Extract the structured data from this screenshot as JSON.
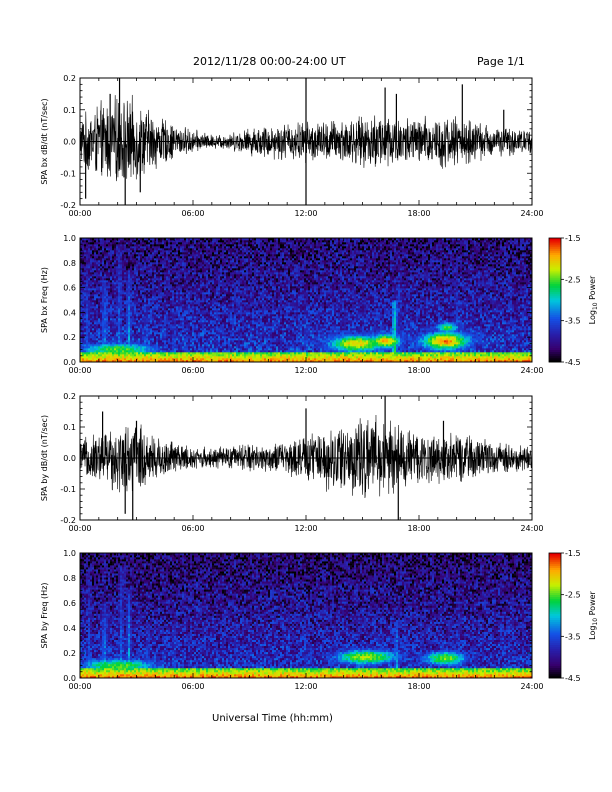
{
  "header": {
    "title": "2012/11/28  00:00-24:00 UT",
    "page": "Page 1/1"
  },
  "xlabel": "Universal Time (hh:mm)",
  "chart_data": [
    {
      "type": "line",
      "ylabel": "SPA bx dB/dt (nT/sec)",
      "x_range_hours": [
        0,
        24
      ],
      "ylim": [
        -0.2,
        0.2
      ],
      "x_ticks": [
        "00:00",
        "06:00",
        "12:00",
        "18:00",
        "24:00"
      ],
      "y_ticks": [
        "-0.2",
        "-0.1",
        "0.0",
        "0.1",
        "0.2"
      ],
      "amplitude_envelope": {
        "hours": [
          0,
          1,
          2,
          3,
          4,
          5,
          6,
          7,
          8,
          9,
          10,
          11,
          12,
          13,
          14,
          15,
          16,
          17,
          18,
          19,
          20,
          21,
          22,
          23,
          24
        ],
        "amp": [
          0.07,
          0.11,
          0.13,
          0.12,
          0.08,
          0.05,
          0.035,
          0.02,
          0.025,
          0.04,
          0.05,
          0.055,
          0.06,
          0.06,
          0.07,
          0.07,
          0.09,
          0.075,
          0.07,
          0.08,
          0.075,
          0.06,
          0.045,
          0.04,
          0.035
        ]
      },
      "spikes": [
        {
          "hour": 0.3,
          "value": -0.18
        },
        {
          "hour": 1.6,
          "value": 0.15
        },
        {
          "hour": 2.1,
          "value": 0.2
        },
        {
          "hour": 2.4,
          "value": -0.2
        },
        {
          "hour": 3.2,
          "value": -0.16
        },
        {
          "hour": 12.0,
          "value": 0.2
        },
        {
          "hour": 12.0,
          "value": -0.2
        },
        {
          "hour": 16.2,
          "value": 0.17
        },
        {
          "hour": 16.8,
          "value": 0.15
        },
        {
          "hour": 20.3,
          "value": 0.18
        },
        {
          "hour": 22.5,
          "value": 0.1
        }
      ]
    },
    {
      "type": "heatmap",
      "ylabel": "SPA bx Freq (Hz)",
      "x_range_hours": [
        0,
        24
      ],
      "ylim": [
        0.0,
        1.0
      ],
      "x_ticks": [
        "00:00",
        "06:00",
        "12:00",
        "18:00",
        "24:00"
      ],
      "y_ticks": [
        "0.0",
        "0.2",
        "0.4",
        "0.6",
        "0.8",
        "1.0"
      ],
      "colorbar": {
        "label": "Log10 Power",
        "label_main": "Log",
        "label_sub": "10",
        "label_rest": " Power",
        "ticks": [
          "-1.5",
          "-2.5",
          "-3.5",
          "-4.5"
        ],
        "range": [
          -4.5,
          -1.5
        ]
      },
      "background_level": -3.9,
      "low_freq_band": {
        "freq_top": 0.08,
        "level": -2.6
      },
      "features": [
        {
          "hour": 0.4,
          "freq_top": 0.9,
          "width_h": 0.15,
          "level": -3.2
        },
        {
          "hour": 1.3,
          "freq_top": 0.65,
          "width_h": 0.25,
          "level": -3.0
        },
        {
          "hour": 2.1,
          "freq_top": 0.95,
          "width_h": 0.2,
          "level": -3.1
        },
        {
          "hour": 2.6,
          "freq_top": 0.75,
          "width_h": 0.2,
          "level": -3.0
        },
        {
          "hour": 3.5,
          "freq_top": 0.45,
          "width_h": 0.3,
          "level": -3.2
        },
        {
          "hour": 5.0,
          "freq_top": 0.5,
          "width_h": 0.25,
          "level": -3.3
        },
        {
          "hour": 5.6,
          "freq_top": 0.35,
          "width_h": 0.2,
          "level": -3.3
        },
        {
          "hour": 9.0,
          "freq_top": 0.45,
          "width_h": 0.15,
          "level": -3.4
        },
        {
          "hour": 12.0,
          "freq_top": 0.55,
          "width_h": 0.15,
          "level": -3.2
        },
        {
          "hour": 16.7,
          "freq_top": 0.5,
          "width_h": 0.15,
          "level": -2.4
        },
        {
          "hour": 17.0,
          "freq_top": 0.85,
          "width_h": 0.15,
          "level": -3.3
        },
        {
          "hour": 20.0,
          "freq_top": 0.85,
          "width_h": 0.15,
          "level": -3.3
        }
      ],
      "blobs": [
        {
          "hour": 14.7,
          "freq": 0.15,
          "sigma_h": 1.1,
          "sigma_f": 0.05,
          "level": -2.0
        },
        {
          "hour": 16.2,
          "freq": 0.17,
          "sigma_h": 0.6,
          "sigma_f": 0.04,
          "level": -1.9
        },
        {
          "hour": 19.4,
          "freq": 0.17,
          "sigma_h": 0.9,
          "sigma_f": 0.05,
          "level": -1.8
        },
        {
          "hour": 19.5,
          "freq": 0.28,
          "sigma_h": 0.6,
          "sigma_f": 0.04,
          "level": -2.6
        },
        {
          "hour": 2.0,
          "freq": 0.1,
          "sigma_h": 1.8,
          "sigma_f": 0.05,
          "level": -2.5
        }
      ]
    },
    {
      "type": "line",
      "ylabel": "SPA by dB/dt (nT/sec)",
      "x_range_hours": [
        0,
        24
      ],
      "ylim": [
        -0.2,
        0.2
      ],
      "x_ticks": [
        "00:00",
        "06:00",
        "12:00",
        "18:00",
        "24:00"
      ],
      "y_ticks": [
        "-0.2",
        "-0.1",
        "0.0",
        "0.1",
        "0.2"
      ],
      "amplitude_envelope": {
        "hours": [
          0,
          1,
          2,
          3,
          4,
          5,
          6,
          7,
          8,
          9,
          10,
          11,
          12,
          13,
          14,
          15,
          16,
          17,
          18,
          19,
          20,
          21,
          22,
          23,
          24
        ],
        "amp": [
          0.05,
          0.08,
          0.1,
          0.11,
          0.07,
          0.05,
          0.035,
          0.03,
          0.035,
          0.045,
          0.04,
          0.05,
          0.07,
          0.09,
          0.11,
          0.12,
          0.12,
          0.1,
          0.08,
          0.075,
          0.07,
          0.06,
          0.05,
          0.04,
          0.035
        ]
      },
      "spikes": [
        {
          "hour": 1.2,
          "value": 0.15
        },
        {
          "hour": 2.4,
          "value": -0.18
        },
        {
          "hour": 2.8,
          "value": -0.2
        },
        {
          "hour": 3.0,
          "value": 0.12
        },
        {
          "hour": 12.0,
          "value": 0.16
        },
        {
          "hour": 16.2,
          "value": 0.2
        },
        {
          "hour": 16.9,
          "value": -0.2
        },
        {
          "hour": 19.3,
          "value": 0.12
        }
      ]
    },
    {
      "type": "heatmap",
      "ylabel": "SPA by Freq (Hz)",
      "x_range_hours": [
        0,
        24
      ],
      "ylim": [
        0.0,
        1.0
      ],
      "x_ticks": [
        "00:00",
        "06:00",
        "12:00",
        "18:00",
        "24:00"
      ],
      "y_ticks": [
        "0.0",
        "0.2",
        "0.4",
        "0.6",
        "0.8",
        "1.0"
      ],
      "colorbar": {
        "label": "Log10 Power",
        "label_main": "Log",
        "label_sub": "10",
        "label_rest": " Power",
        "ticks": [
          "-1.5",
          "-2.5",
          "-3.5",
          "-4.5"
        ],
        "range": [
          -4.5,
          -1.5
        ]
      },
      "background_level": -3.95,
      "low_freq_band": {
        "freq_top": 0.08,
        "level": -2.6
      },
      "features": [
        {
          "hour": 0.5,
          "freq_top": 0.85,
          "width_h": 0.15,
          "level": -3.2
        },
        {
          "hour": 1.3,
          "freq_top": 0.6,
          "width_h": 0.25,
          "level": -3.0
        },
        {
          "hour": 2.2,
          "freq_top": 0.9,
          "width_h": 0.2,
          "level": -3.1
        },
        {
          "hour": 2.6,
          "freq_top": 0.7,
          "width_h": 0.2,
          "level": -3.0
        },
        {
          "hour": 3.6,
          "freq_top": 0.45,
          "width_h": 0.3,
          "level": -3.2
        },
        {
          "hour": 5.0,
          "freq_top": 0.55,
          "width_h": 0.25,
          "level": -3.3
        },
        {
          "hour": 9.0,
          "freq_top": 0.45,
          "width_h": 0.15,
          "level": -3.4
        },
        {
          "hour": 12.0,
          "freq_top": 0.5,
          "width_h": 0.15,
          "level": -3.3
        },
        {
          "hour": 16.8,
          "freq_top": 0.45,
          "width_h": 0.15,
          "level": -2.8
        },
        {
          "hour": 20.1,
          "freq_top": 0.8,
          "width_h": 0.15,
          "level": -3.3
        }
      ],
      "blobs": [
        {
          "hour": 15.2,
          "freq": 0.17,
          "sigma_h": 1.4,
          "sigma_f": 0.05,
          "level": -2.3
        },
        {
          "hour": 19.4,
          "freq": 0.16,
          "sigma_h": 1.0,
          "sigma_f": 0.05,
          "level": -2.4
        },
        {
          "hour": 2.0,
          "freq": 0.1,
          "sigma_h": 1.8,
          "sigma_f": 0.05,
          "level": -2.5
        }
      ]
    }
  ]
}
